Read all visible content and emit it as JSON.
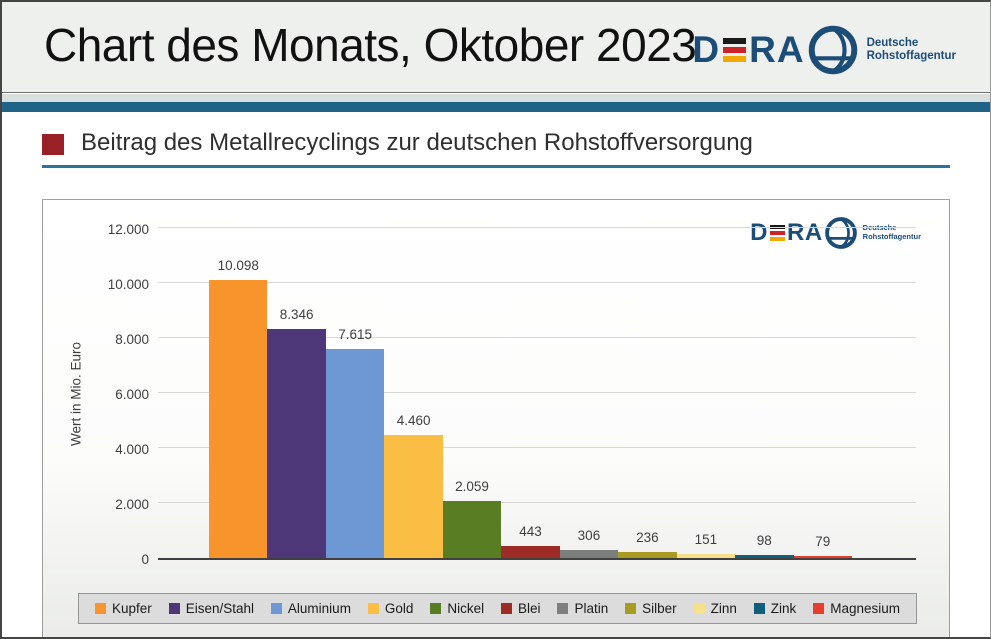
{
  "page": {
    "title": "Chart des Monats, Oktober 2023",
    "subtitle": "Beitrag des Metallrecyclings zur deutschen Rohstoffversorgung"
  },
  "logo": {
    "text_d": "D",
    "text_ra": "RA",
    "tagline_line1": "Deutsche",
    "tagline_line2": "Rohstoffagentur",
    "navy": "#1C4C78",
    "flag_black": "#1A1A1A",
    "flag_red": "#CC2429",
    "flag_gold": "#F2A800"
  },
  "colors": {
    "header_background": "#EEF0ED",
    "teal_band": "#1F6387",
    "subtitle_bullet_red": "#9A2028",
    "underline_teal": "#2E7396",
    "legend_background": "#DCDCDC"
  },
  "chart_data": {
    "type": "bar",
    "title": "Beitrag des Metallrecyclings zur deutschen Rohstoffversorgung",
    "xlabel": "",
    "ylabel": "Wert in Mio. Euro",
    "ylim": [
      0,
      12000
    ],
    "ytick_labels": [
      "0",
      "2.000",
      "4.000",
      "6.000",
      "8.000",
      "10.000",
      "12.000"
    ],
    "grid": true,
    "legend_position": "bottom",
    "categories": [
      "Kupfer",
      "Eisen/Stahl",
      "Aluminium",
      "Gold",
      "Nickel",
      "Blei",
      "Platin",
      "Silber",
      "Zinn",
      "Zink",
      "Magnesium"
    ],
    "values": [
      10098,
      8346,
      7615,
      4460,
      2059,
      443,
      306,
      236,
      151,
      98,
      79
    ],
    "value_labels": [
      "10.098",
      "8.346",
      "7.615",
      "4.460",
      "2.059",
      "443",
      "306",
      "236",
      "151",
      "98",
      "79"
    ],
    "bar_colors": [
      "#F8942C",
      "#4D3779",
      "#6D98D3",
      "#FBBE45",
      "#587D23",
      "#9E2B25",
      "#7C7F7D",
      "#A89B22",
      "#F7E08C",
      "#10607D",
      "#E63D2E"
    ]
  }
}
